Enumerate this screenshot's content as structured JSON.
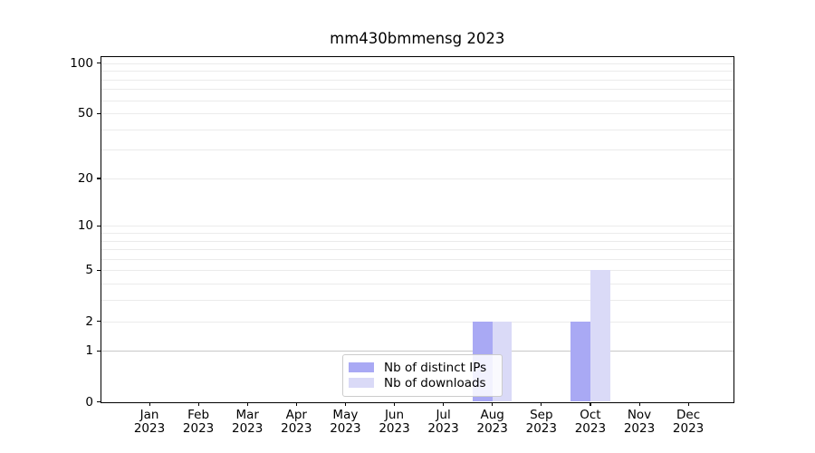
{
  "title": "mm430bmmensg 2023",
  "chart_data": {
    "type": "bar",
    "title": "mm430bmmensg 2023",
    "x": {
      "categories": [
        "Jan",
        "Feb",
        "Mar",
        "Apr",
        "May",
        "Jun",
        "Jul",
        "Aug",
        "Sep",
        "Oct",
        "Nov",
        "Dec"
      ],
      "year_label": "2023"
    },
    "y": {
      "scale": "log1p",
      "lim": [
        0,
        109
      ],
      "ticks": [
        0,
        1,
        2,
        5,
        10,
        20,
        50,
        100
      ],
      "gridlines": [
        1,
        2,
        3,
        4,
        5,
        6,
        7,
        8,
        9,
        10,
        20,
        30,
        40,
        50,
        60,
        70,
        80,
        90,
        100
      ],
      "emphasized_gridline": 1
    },
    "series": [
      {
        "name": "Nb of distinct IPs",
        "color": "#a9a9f4",
        "values": [
          0,
          0,
          0,
          0,
          0,
          0,
          0,
          2,
          0,
          2,
          0,
          0
        ]
      },
      {
        "name": "Nb of downloads",
        "color": "#dadaf7",
        "values": [
          0,
          0,
          0,
          0,
          0,
          0,
          0,
          2,
          0,
          5,
          0,
          0
        ]
      }
    ],
    "legend": {
      "position": "lower center"
    }
  },
  "colors": {
    "background": "#ffffff",
    "spine": "#000000",
    "grid": "#ebebeb",
    "grid_emphasis": "#c8c8c8",
    "legend_border": "#cccccc",
    "text": "#000000"
  }
}
